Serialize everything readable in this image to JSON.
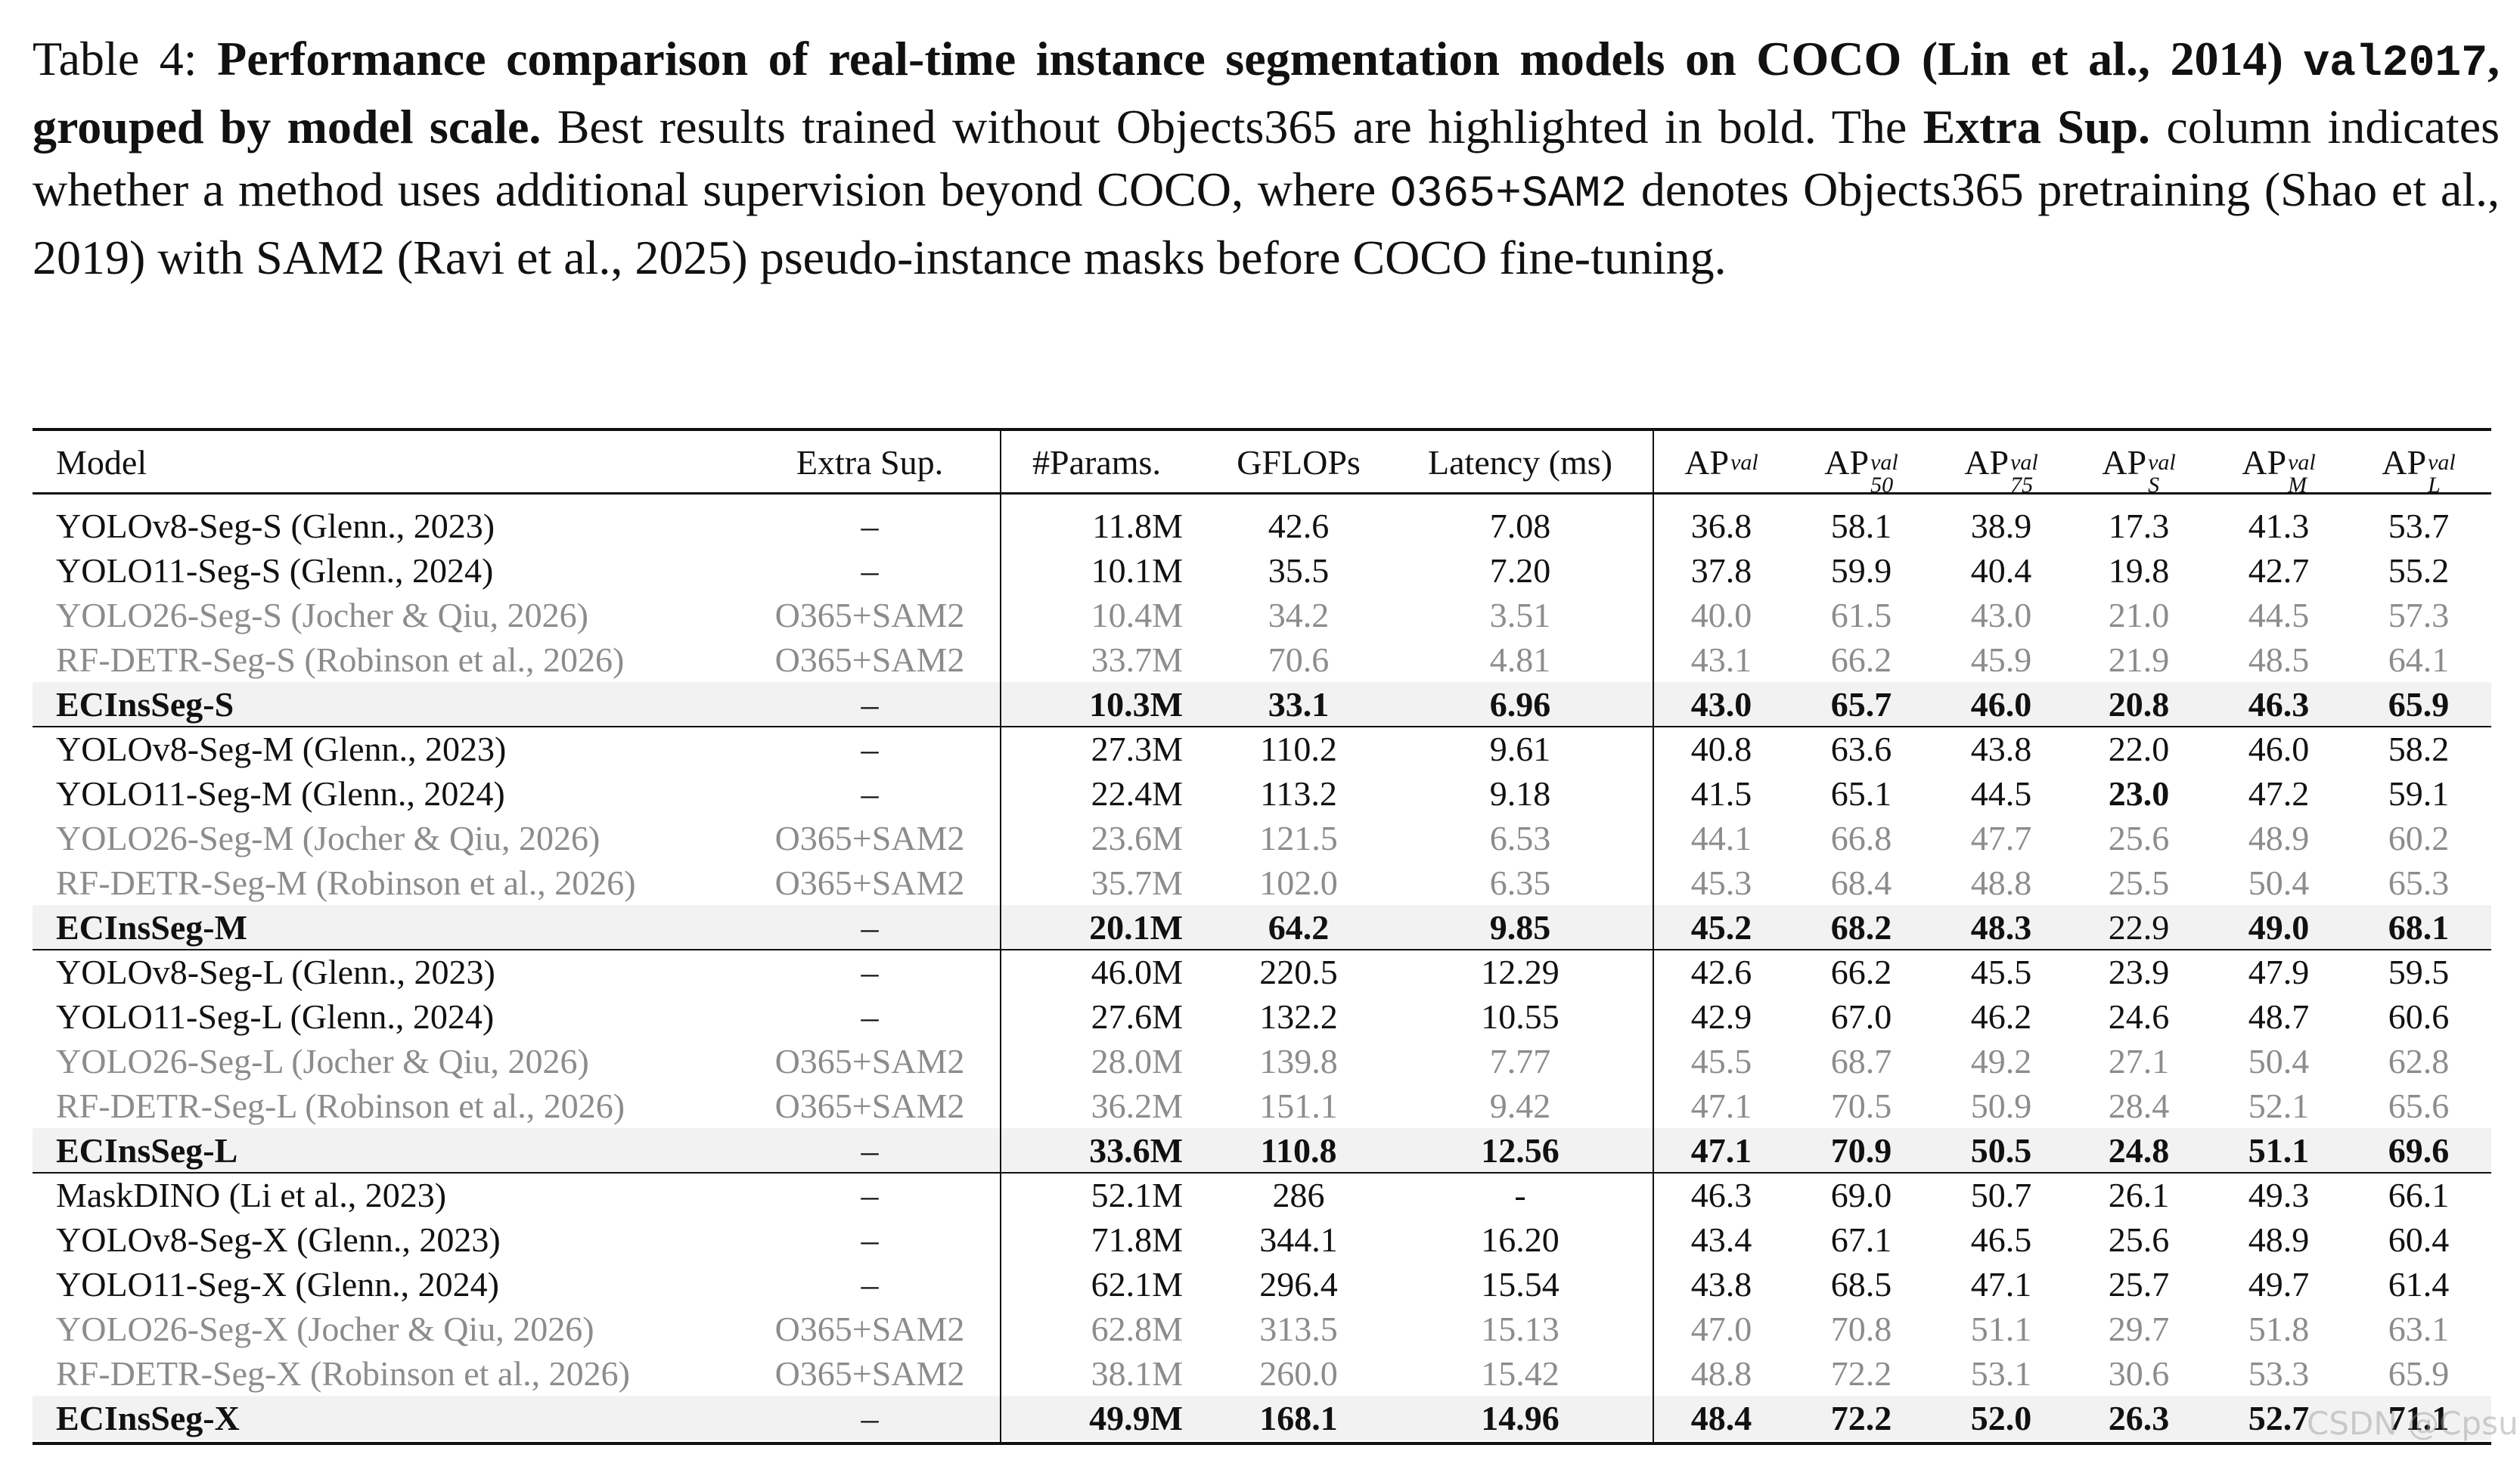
{
  "caption": {
    "segments": [
      {
        "text": "Table 4: ",
        "style": "normal"
      },
      {
        "text": "Performance comparison of real-time instance segmentation models on COCO (Lin et al., 2014) ",
        "style": "bold"
      },
      {
        "text": "val2017",
        "style": "bold-code"
      },
      {
        "text": ", grouped by model scale.",
        "style": "bold"
      },
      {
        "text": " Best results trained without Objects365 are highlighted in bold. The ",
        "style": "normal"
      },
      {
        "text": "Extra Sup.",
        "style": "bold"
      },
      {
        "text": " column indicates whether a method uses additional supervision beyond COCO, where ",
        "style": "normal"
      },
      {
        "text": "O365+SAM2",
        "style": "code"
      },
      {
        "text": " denotes Objects365 pretraining (Shao et al., 2019) with SAM2 (Ravi et al., 2025) pseudo-instance masks before COCO fine-tuning.",
        "style": "normal"
      }
    ]
  },
  "table": {
    "header": [
      {
        "base": "Model"
      },
      {
        "base": "Extra Sup."
      },
      {
        "base": "#Params."
      },
      {
        "base": "GFLOPs"
      },
      {
        "base": "Latency (ms)"
      },
      {
        "base": "AP",
        "sup": "val"
      },
      {
        "base": "AP",
        "sup": "val",
        "sub": "50"
      },
      {
        "base": "AP",
        "sup": "val",
        "sub": "75"
      },
      {
        "base": "AP",
        "sup": "val",
        "sub": "S"
      },
      {
        "base": "AP",
        "sup": "val",
        "sub": "M"
      },
      {
        "base": "AP",
        "sup": "val",
        "sub": "L"
      }
    ],
    "groups": [
      {
        "rows": [
          {
            "cells": [
              "YOLOv8-Seg-S (Glenn., 2023)",
              "–",
              "11.8M",
              "42.6",
              "7.08",
              "36.8",
              "58.1",
              "38.9",
              "17.3",
              "41.3",
              "53.7"
            ]
          },
          {
            "cells": [
              "YOLO11-Seg-S (Glenn., 2024)",
              "–",
              "10.1M",
              "35.5",
              "7.20",
              "37.8",
              "59.9",
              "40.4",
              "19.8",
              "42.7",
              "55.2"
            ]
          },
          {
            "cells": [
              "YOLO26-Seg-S (Jocher & Qiu, 2026)",
              "O365+SAM2",
              "10.4M",
              "34.2",
              "3.51",
              "40.0",
              "61.5",
              "43.0",
              "21.0",
              "44.5",
              "57.3"
            ],
            "muted": true
          },
          {
            "cells": [
              "RF-DETR-Seg-S (Robinson et al., 2026)",
              "O365+SAM2",
              "33.7M",
              "70.6",
              "4.81",
              "43.1",
              "66.2",
              "45.9",
              "21.9",
              "48.5",
              "64.1"
            ],
            "muted": true
          },
          {
            "cells": [
              "ECInsSeg-S",
              "–",
              "10.3M",
              "33.1",
              "6.96",
              "43.0",
              "65.7",
              "46.0",
              "20.8",
              "46.3",
              "65.9"
            ],
            "highlight": true,
            "bold": [
              0,
              2,
              3,
              4,
              5,
              6,
              7,
              8,
              9,
              10
            ]
          }
        ]
      },
      {
        "rows": [
          {
            "cells": [
              "YOLOv8-Seg-M (Glenn., 2023)",
              "–",
              "27.3M",
              "110.2",
              "9.61",
              "40.8",
              "63.6",
              "43.8",
              "22.0",
              "46.0",
              "58.2"
            ]
          },
          {
            "cells": [
              "YOLO11-Seg-M (Glenn., 2024)",
              "–",
              "22.4M",
              "113.2",
              "9.18",
              "41.5",
              "65.1",
              "44.5",
              "23.0",
              "47.2",
              "59.1"
            ],
            "bold": [
              8
            ]
          },
          {
            "cells": [
              "YOLO26-Seg-M (Jocher & Qiu, 2026)",
              "O365+SAM2",
              "23.6M",
              "121.5",
              "6.53",
              "44.1",
              "66.8",
              "47.7",
              "25.6",
              "48.9",
              "60.2"
            ],
            "muted": true
          },
          {
            "cells": [
              "RF-DETR-Seg-M (Robinson et al., 2026)",
              "O365+SAM2",
              "35.7M",
              "102.0",
              "6.35",
              "45.3",
              "68.4",
              "48.8",
              "25.5",
              "50.4",
              "65.3"
            ],
            "muted": true
          },
          {
            "cells": [
              "ECInsSeg-M",
              "–",
              "20.1M",
              "64.2",
              "9.85",
              "45.2",
              "68.2",
              "48.3",
              "22.9",
              "49.0",
              "68.1"
            ],
            "highlight": true,
            "bold": [
              0,
              2,
              3,
              4,
              5,
              6,
              7,
              9,
              10
            ]
          }
        ]
      },
      {
        "rows": [
          {
            "cells": [
              "YOLOv8-Seg-L (Glenn., 2023)",
              "–",
              "46.0M",
              "220.5",
              "12.29",
              "42.6",
              "66.2",
              "45.5",
              "23.9",
              "47.9",
              "59.5"
            ]
          },
          {
            "cells": [
              "YOLO11-Seg-L (Glenn., 2024)",
              "–",
              "27.6M",
              "132.2",
              "10.55",
              "42.9",
              "67.0",
              "46.2",
              "24.6",
              "48.7",
              "60.6"
            ]
          },
          {
            "cells": [
              "YOLO26-Seg-L (Jocher & Qiu, 2026)",
              "O365+SAM2",
              "28.0M",
              "139.8",
              "7.77",
              "45.5",
              "68.7",
              "49.2",
              "27.1",
              "50.4",
              "62.8"
            ],
            "muted": true
          },
          {
            "cells": [
              "RF-DETR-Seg-L (Robinson et al., 2026)",
              "O365+SAM2",
              "36.2M",
              "151.1",
              "9.42",
              "47.1",
              "70.5",
              "50.9",
              "28.4",
              "52.1",
              "65.6"
            ],
            "muted": true
          },
          {
            "cells": [
              "ECInsSeg-L",
              "–",
              "33.6M",
              "110.8",
              "12.56",
              "47.1",
              "70.9",
              "50.5",
              "24.8",
              "51.1",
              "69.6"
            ],
            "highlight": true,
            "bold": [
              0,
              2,
              3,
              4,
              5,
              6,
              7,
              8,
              9,
              10
            ]
          }
        ]
      },
      {
        "rows": [
          {
            "cells": [
              "MaskDINO (Li et al., 2023)",
              "–",
              "52.1M",
              "286",
              "-",
              "46.3",
              "69.0",
              "50.7",
              "26.1",
              "49.3",
              "66.1"
            ]
          },
          {
            "cells": [
              "YOLOv8-Seg-X (Glenn., 2023)",
              "–",
              "71.8M",
              "344.1",
              "16.20",
              "43.4",
              "67.1",
              "46.5",
              "25.6",
              "48.9",
              "60.4"
            ]
          },
          {
            "cells": [
              "YOLO11-Seg-X (Glenn., 2024)",
              "–",
              "62.1M",
              "296.4",
              "15.54",
              "43.8",
              "68.5",
              "47.1",
              "25.7",
              "49.7",
              "61.4"
            ]
          },
          {
            "cells": [
              "YOLO26-Seg-X (Jocher & Qiu, 2026)",
              "O365+SAM2",
              "62.8M",
              "313.5",
              "15.13",
              "47.0",
              "70.8",
              "51.1",
              "29.7",
              "51.8",
              "63.1"
            ],
            "muted": true
          },
          {
            "cells": [
              "RF-DETR-Seg-X (Robinson et al., 2026)",
              "O365+SAM2",
              "38.1M",
              "260.0",
              "15.42",
              "48.8",
              "72.2",
              "53.1",
              "30.6",
              "53.3",
              "65.9"
            ],
            "muted": true
          },
          {
            "cells": [
              "ECInsSeg-X",
              "–",
              "49.9M",
              "168.1",
              "14.96",
              "48.4",
              "72.2",
              "52.0",
              "26.3",
              "52.7",
              "71.1"
            ],
            "highlight": true,
            "bold": [
              0,
              2,
              3,
              4,
              5,
              6,
              7,
              8,
              9,
              10
            ]
          }
        ]
      }
    ]
  },
  "watermark": "CSDN @Cpsu"
}
